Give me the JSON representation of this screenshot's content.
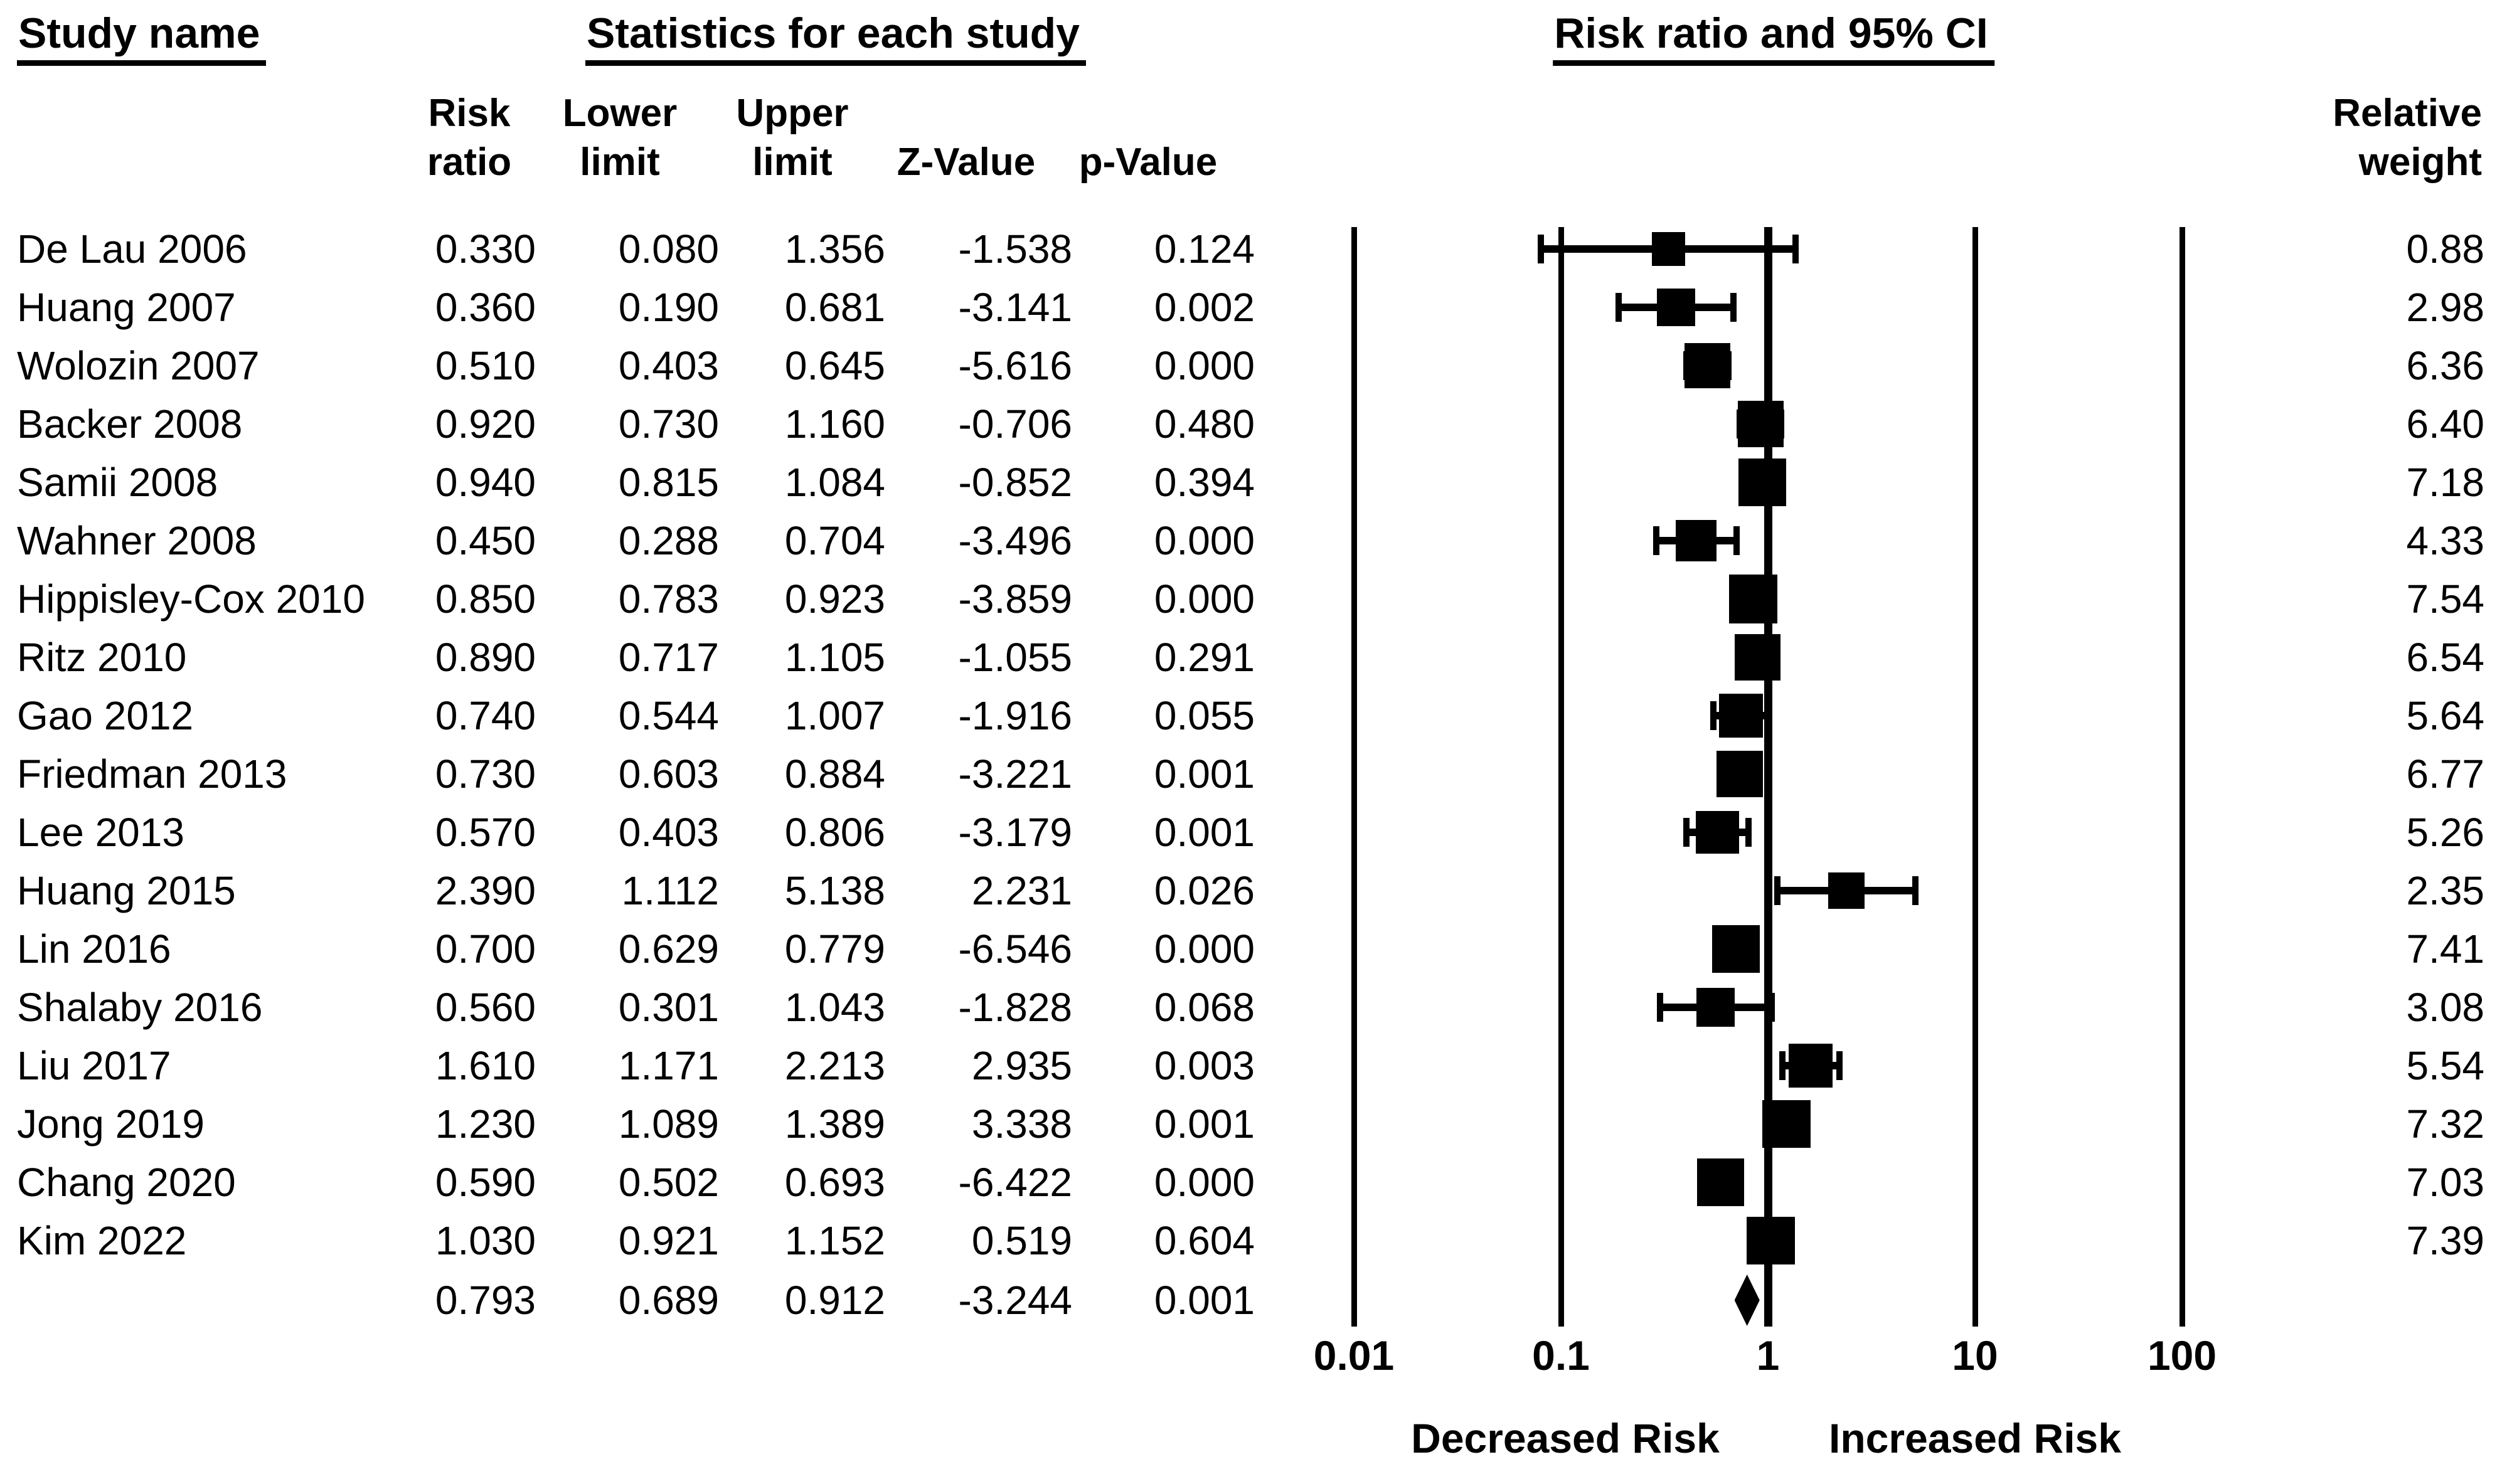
{
  "figure": {
    "headers": {
      "study_name": "Study name",
      "statistics": "Statistics for each study",
      "plot": "Risk ratio and 95% CI"
    },
    "subheaders": {
      "risk_ratio": [
        "Risk",
        "ratio"
      ],
      "lower_limit": [
        "Lower",
        "limit"
      ],
      "upper_limit": [
        "Upper",
        "limit"
      ],
      "z_value": "Z-Value",
      "p_value": "p-Value",
      "relative_weight": [
        "Relative",
        "weight"
      ]
    }
  },
  "chart_data": {
    "type": "scatter",
    "subtype": "forest-plot",
    "title": "Risk ratio and 95% CI",
    "x_axis": {
      "scale": "log10",
      "xlim": [
        0.01,
        100
      ],
      "tick_labels": [
        "0.01",
        "0.1",
        "1",
        "10",
        "100"
      ],
      "reference_lines": [
        0.01,
        0.1,
        1,
        10,
        100
      ]
    },
    "axis_annotations": {
      "left": "Decreased Risk",
      "right": "Increased Risk"
    },
    "columns": [
      "Study name",
      "Risk ratio",
      "Lower limit",
      "Upper limit",
      "Z-Value",
      "p-Value",
      "Relative weight"
    ],
    "studies": [
      {
        "name": "De Lau 2006",
        "risk_ratio": "0.330",
        "lower_limit": "0.080",
        "upper_limit": "1.356",
        "z_value": "-1.538",
        "p_value": "0.124",
        "relative_weight": "0.88"
      },
      {
        "name": "Huang 2007",
        "risk_ratio": "0.360",
        "lower_limit": "0.190",
        "upper_limit": "0.681",
        "z_value": "-3.141",
        "p_value": "0.002",
        "relative_weight": "2.98"
      },
      {
        "name": "Wolozin 2007",
        "risk_ratio": "0.510",
        "lower_limit": "0.403",
        "upper_limit": "0.645",
        "z_value": "-5.616",
        "p_value": "0.000",
        "relative_weight": "6.36"
      },
      {
        "name": "Backer 2008",
        "risk_ratio": "0.920",
        "lower_limit": "0.730",
        "upper_limit": "1.160",
        "z_value": "-0.706",
        "p_value": "0.480",
        "relative_weight": "6.40"
      },
      {
        "name": "Samii 2008",
        "risk_ratio": "0.940",
        "lower_limit": "0.815",
        "upper_limit": "1.084",
        "z_value": "-0.852",
        "p_value": "0.394",
        "relative_weight": "7.18"
      },
      {
        "name": "Wahner 2008",
        "risk_ratio": "0.450",
        "lower_limit": "0.288",
        "upper_limit": "0.704",
        "z_value": "-3.496",
        "p_value": "0.000",
        "relative_weight": "4.33"
      },
      {
        "name": "Hippisley-Cox 2010",
        "risk_ratio": "0.850",
        "lower_limit": "0.783",
        "upper_limit": "0.923",
        "z_value": "-3.859",
        "p_value": "0.000",
        "relative_weight": "7.54"
      },
      {
        "name": "Ritz 2010",
        "risk_ratio": "0.890",
        "lower_limit": "0.717",
        "upper_limit": "1.105",
        "z_value": "-1.055",
        "p_value": "0.291",
        "relative_weight": "6.54"
      },
      {
        "name": "Gao 2012",
        "risk_ratio": "0.740",
        "lower_limit": "0.544",
        "upper_limit": "1.007",
        "z_value": "-1.916",
        "p_value": "0.055",
        "relative_weight": "5.64"
      },
      {
        "name": "Friedman 2013",
        "risk_ratio": "0.730",
        "lower_limit": "0.603",
        "upper_limit": "0.884",
        "z_value": "-3.221",
        "p_value": "0.001",
        "relative_weight": "6.77"
      },
      {
        "name": "Lee 2013",
        "risk_ratio": "0.570",
        "lower_limit": "0.403",
        "upper_limit": "0.806",
        "z_value": "-3.179",
        "p_value": "0.001",
        "relative_weight": "5.26"
      },
      {
        "name": "Huang 2015",
        "risk_ratio": "2.390",
        "lower_limit": "1.112",
        "upper_limit": "5.138",
        "z_value": "2.231",
        "p_value": "0.026",
        "relative_weight": "2.35"
      },
      {
        "name": "Lin 2016",
        "risk_ratio": "0.700",
        "lower_limit": "0.629",
        "upper_limit": "0.779",
        "z_value": "-6.546",
        "p_value": "0.000",
        "relative_weight": "7.41"
      },
      {
        "name": "Shalaby 2016",
        "risk_ratio": "0.560",
        "lower_limit": "0.301",
        "upper_limit": "1.043",
        "z_value": "-1.828",
        "p_value": "0.068",
        "relative_weight": "3.08"
      },
      {
        "name": "Liu 2017",
        "risk_ratio": "1.610",
        "lower_limit": "1.171",
        "upper_limit": "2.213",
        "z_value": "2.935",
        "p_value": "0.003",
        "relative_weight": "5.54"
      },
      {
        "name": "Jong 2019",
        "risk_ratio": "1.230",
        "lower_limit": "1.089",
        "upper_limit": "1.389",
        "z_value": "3.338",
        "p_value": "0.001",
        "relative_weight": "7.32"
      },
      {
        "name": "Chang 2020",
        "risk_ratio": "0.590",
        "lower_limit": "0.502",
        "upper_limit": "0.693",
        "z_value": "-6.422",
        "p_value": "0.000",
        "relative_weight": "7.03"
      },
      {
        "name": "Kim 2022",
        "risk_ratio": "1.030",
        "lower_limit": "0.921",
        "upper_limit": "1.152",
        "z_value": "0.519",
        "p_value": "0.604",
        "relative_weight": "7.39"
      }
    ],
    "summary": {
      "name": "",
      "risk_ratio": "0.793",
      "lower_limit": "0.689",
      "upper_limit": "0.912",
      "z_value": "-3.244",
      "p_value": "0.001",
      "relative_weight": "",
      "marker": "diamond"
    },
    "marker_color": "#000000",
    "legend": "none",
    "grid": "vertical reference lines only"
  }
}
